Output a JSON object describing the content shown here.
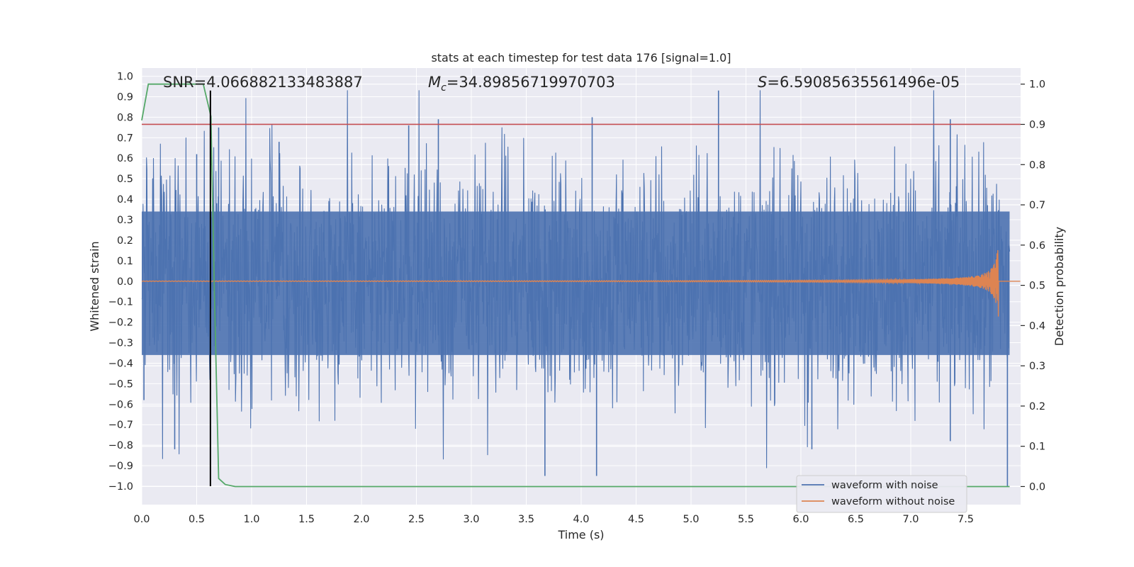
{
  "chart_data": {
    "type": "line",
    "title": "stats at each timestep for test data 176 [signal=1.0]",
    "xlabel": "Time (s)",
    "ylabel": "Whitened strain",
    "y2label": "Detection probability",
    "xlim": [
      0.0,
      8.0
    ],
    "ylim": [
      -1.09,
      1.04
    ],
    "y2lim": [
      -0.045,
      1.04
    ],
    "x_ticks": [
      0.0,
      0.5,
      1.0,
      1.5,
      2.0,
      2.5,
      3.0,
      3.5,
      4.0,
      4.5,
      5.0,
      5.5,
      6.0,
      6.5,
      7.0,
      7.5
    ],
    "x_tick_labels": [
      "0.0",
      "0.5",
      "1.0",
      "1.5",
      "2.0",
      "2.5",
      "3.0",
      "3.5",
      "4.0",
      "4.5",
      "5.0",
      "5.5",
      "6.0",
      "6.5",
      "7.0",
      "7.5"
    ],
    "y_ticks": [
      1.0,
      0.9,
      0.8,
      0.7,
      0.6,
      0.5,
      0.4,
      0.3,
      0.2,
      0.1,
      0.0,
      -0.1,
      -0.2,
      -0.3,
      -0.4,
      -0.5,
      -0.6,
      -0.7,
      -0.8,
      -0.9,
      -1.0
    ],
    "y_tick_labels": [
      "1.0",
      "0.9",
      "0.8",
      "0.7",
      "0.6",
      "0.5",
      "0.4",
      "0.3",
      "0.2",
      "0.1",
      "0.0",
      "−0.1",
      "−0.2",
      "−0.3",
      "−0.4",
      "−0.5",
      "−0.6",
      "−0.7",
      "−0.8",
      "−0.9",
      "−1.0"
    ],
    "y2_ticks": [
      1.0,
      0.9,
      0.8,
      0.7,
      0.6,
      0.5,
      0.4,
      0.3,
      0.2,
      0.1,
      0.0
    ],
    "y2_tick_labels": [
      "1.0",
      "0.9",
      "0.8",
      "0.7",
      "0.6",
      "0.5",
      "0.4",
      "0.3",
      "0.2",
      "0.1",
      "0.0"
    ],
    "annotations": {
      "snr": "SNR=4.066882133483887",
      "mc_symbol": "M",
      "mc_sub": "c",
      "mc_value": "=34.89856719970703",
      "s_symbol": "S",
      "s_value": "=6.59085635561496e-05"
    },
    "series": [
      {
        "name": "waveform with noise",
        "color": "#4c72b0",
        "axis": "left",
        "duration": 7.9,
        "samples": 2000,
        "band_amplitude": 0.4,
        "max": 0.93,
        "min": -1.0
      },
      {
        "name": "waveform without noise",
        "color": "#dd8452",
        "axis": "left",
        "duration": 8.0,
        "chirp_end": 7.8,
        "peak_amplitude": 0.22
      },
      {
        "name": "detection probability",
        "color": "#55a868",
        "axis": "right",
        "x": [
          0.0,
          0.06,
          0.12,
          0.2,
          0.3,
          0.4,
          0.5,
          0.56,
          0.63,
          0.66,
          0.7,
          0.76,
          0.85,
          1.0,
          1.25,
          2.0,
          4.0,
          6.0,
          7.9
        ],
        "values": [
          0.91,
          1.0,
          1.0,
          1.0,
          1.0,
          1.0,
          1.0,
          1.0,
          0.92,
          0.5,
          0.02,
          0.005,
          0.0,
          0.0,
          0.0,
          0.0,
          0.0,
          0.0,
          0.0
        ]
      }
    ],
    "threshold": {
      "axis": "right",
      "value": 0.9,
      "color": "#c44e52"
    },
    "detection_time": {
      "x": 0.625,
      "y_range": [
        -1.0,
        0.93
      ],
      "color": "#000000"
    },
    "legend": {
      "location": "lower-right",
      "entries": [
        "waveform with noise",
        "waveform without noise"
      ]
    }
  }
}
